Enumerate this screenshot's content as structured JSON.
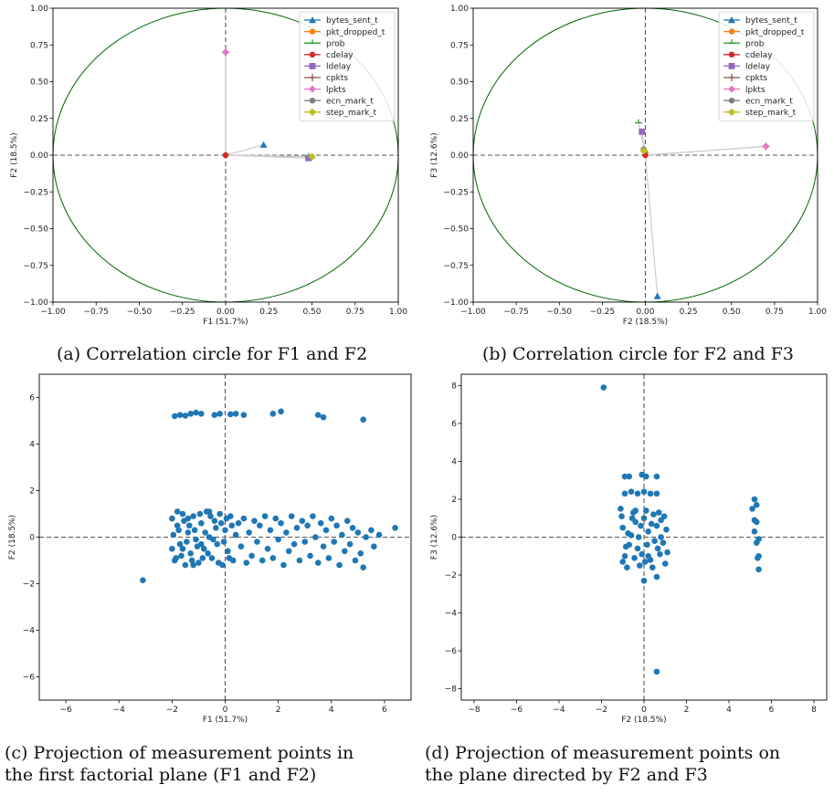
{
  "captions": {
    "a": "(a) Correlation circle for F1 and F2",
    "b": "(b) Correlation circle for F2 and F3",
    "c_line1": "(c) Projection of measurement points in",
    "c_line2": "the first factorial plane (F1 and F2)",
    "d_line1": "(d) Projection of measurement points on",
    "d_line2": "the plane directed by F2 and F3"
  },
  "colors": {
    "circle": "#006400",
    "scatter": "#1f77b4",
    "guide": "#555555",
    "arrow": "#cccccc"
  },
  "chart_data": [
    {
      "id": "a",
      "type": "scatter",
      "subtype": "correlation-circle",
      "xlabel": "F1 (51.7%)",
      "ylabel": "F2 (18.5%)",
      "xlim": [
        -1,
        1
      ],
      "ylim": [
        -1,
        1
      ],
      "xticks": [
        "−1.00",
        "−0.75",
        "−0.50",
        "−0.25",
        "0.00",
        "0.25",
        "0.50",
        "0.75",
        "1.00"
      ],
      "yticks": [
        "−1.00",
        "−0.75",
        "−0.50",
        "−0.25",
        "0.00",
        "0.25",
        "0.50",
        "0.75",
        "1.00"
      ],
      "legend_position": "top-right",
      "series": [
        {
          "name": "bytes_sent_t",
          "color": "#1f77b4",
          "marker": "triangle",
          "x": 0.22,
          "y": 0.07
        },
        {
          "name": "pkt_dropped_t",
          "color": "#ff7f0e",
          "marker": "circle",
          "x": 0.0,
          "y": 0.0
        },
        {
          "name": "prob",
          "color": "#2ca02c",
          "marker": "tri",
          "x": 0.48,
          "y": -0.01
        },
        {
          "name": "cdelay",
          "color": "#d62728",
          "marker": "circle",
          "x": 0.0,
          "y": 0.0
        },
        {
          "name": "ldelay",
          "color": "#9467bd",
          "marker": "square",
          "x": 0.48,
          "y": -0.02
        },
        {
          "name": "cpkts",
          "color": "#8c564b",
          "marker": "plus",
          "x": 0.0,
          "y": 0.7
        },
        {
          "name": "lpkts",
          "color": "#e377c2",
          "marker": "diamond",
          "x": 0.0,
          "y": 0.7
        },
        {
          "name": "ecn_mark_t",
          "color": "#7f7f7f",
          "marker": "circle",
          "x": 0.5,
          "y": -0.01
        },
        {
          "name": "step_mark_t",
          "color": "#bcbd22",
          "marker": "plus-circle",
          "x": 0.5,
          "y": -0.01
        }
      ]
    },
    {
      "id": "b",
      "type": "scatter",
      "subtype": "correlation-circle",
      "xlabel": "F2 (18.5%)",
      "ylabel": "F3 (12.6%)",
      "xlim": [
        -1,
        1
      ],
      "ylim": [
        -1,
        1
      ],
      "xticks": [
        "−1.00",
        "−0.75",
        "−0.50",
        "−0.25",
        "0.00",
        "0.25",
        "0.50",
        "0.75",
        "1.00"
      ],
      "yticks": [
        "−1.00",
        "−0.75",
        "−0.50",
        "−0.25",
        "0.00",
        "0.25",
        "0.50",
        "0.75",
        "1.00"
      ],
      "legend_position": "top-right",
      "series": [
        {
          "name": "bytes_sent_t",
          "color": "#1f77b4",
          "marker": "triangle",
          "x": 0.07,
          "y": -0.96
        },
        {
          "name": "pkt_dropped_t",
          "color": "#ff7f0e",
          "marker": "circle",
          "x": 0.0,
          "y": 0.02
        },
        {
          "name": "prob",
          "color": "#2ca02c",
          "marker": "tri",
          "x": -0.04,
          "y": 0.22
        },
        {
          "name": "cdelay",
          "color": "#d62728",
          "marker": "circle",
          "x": 0.0,
          "y": 0.0
        },
        {
          "name": "ldelay",
          "color": "#9467bd",
          "marker": "square",
          "x": -0.02,
          "y": 0.16
        },
        {
          "name": "cpkts",
          "color": "#8c564b",
          "marker": "plus",
          "x": 0.7,
          "y": 0.06
        },
        {
          "name": "lpkts",
          "color": "#e377c2",
          "marker": "diamond",
          "x": 0.7,
          "y": 0.06
        },
        {
          "name": "ecn_mark_t",
          "color": "#7f7f7f",
          "marker": "circle",
          "x": -0.01,
          "y": 0.04
        },
        {
          "name": "step_mark_t",
          "color": "#bcbd22",
          "marker": "plus-circle",
          "x": -0.01,
          "y": 0.03
        }
      ]
    },
    {
      "id": "c",
      "type": "scatter",
      "xlabel": "F1 (51.7%)",
      "ylabel": "F2 (18.5%)",
      "xlim": [
        -7,
        7
      ],
      "ylim": [
        -7,
        7
      ],
      "xticks": [
        "−6",
        "−4",
        "−2",
        "0",
        "2",
        "4",
        "6"
      ],
      "yticks": [
        "−6",
        "−4",
        "−2",
        "0",
        "2",
        "4",
        "6"
      ],
      "points": [
        [
          -3.1,
          -1.85
        ],
        [
          6.4,
          0.4
        ],
        [
          5.2,
          5.05
        ],
        [
          -1.9,
          5.2
        ],
        [
          -1.7,
          5.25
        ],
        [
          -1.5,
          5.22
        ],
        [
          -1.3,
          5.3
        ],
        [
          -1.1,
          5.35
        ],
        [
          -0.9,
          5.3
        ],
        [
          -0.4,
          5.25
        ],
        [
          -0.2,
          5.3
        ],
        [
          0.2,
          5.28
        ],
        [
          0.4,
          5.3
        ],
        [
          0.7,
          5.25
        ],
        [
          1.8,
          5.3
        ],
        [
          2.1,
          5.4
        ],
        [
          3.5,
          5.25
        ],
        [
          3.7,
          5.15
        ],
        [
          -2.0,
          -0.5
        ],
        [
          -2.0,
          0.8
        ],
        [
          -1.95,
          0.1
        ],
        [
          -1.9,
          -1.0
        ],
        [
          -1.8,
          0.5
        ],
        [
          -1.7,
          -0.3
        ],
        [
          -1.6,
          1.0
        ],
        [
          -1.5,
          -1.2
        ],
        [
          -1.4,
          0.2
        ],
        [
          -1.3,
          -0.7
        ],
        [
          -1.2,
          0.9
        ],
        [
          -1.1,
          -0.1
        ],
        [
          -1.0,
          -1.1
        ],
        [
          -0.9,
          0.6
        ],
        [
          -0.8,
          -0.5
        ],
        [
          -0.7,
          1.1
        ],
        [
          -0.6,
          0.0
        ],
        [
          -0.5,
          -0.9
        ],
        [
          -0.4,
          0.7
        ],
        [
          -0.3,
          -0.3
        ],
        [
          -0.2,
          1.0
        ],
        [
          -0.1,
          -1.2
        ],
        [
          0.0,
          0.3
        ],
        [
          0.1,
          -0.6
        ],
        [
          0.2,
          0.9
        ],
        [
          0.3,
          -1.0
        ],
        [
          0.4,
          0.1
        ],
        [
          0.5,
          0.6
        ],
        [
          0.6,
          -0.4
        ],
        [
          0.7,
          0.8
        ],
        [
          0.8,
          -1.1
        ],
        [
          0.9,
          0.2
        ],
        [
          1.0,
          -0.8
        ],
        [
          1.1,
          0.7
        ],
        [
          1.2,
          -0.2
        ],
        [
          1.3,
          0.5
        ],
        [
          1.4,
          -1.0
        ],
        [
          1.5,
          0.9
        ],
        [
          1.6,
          -0.5
        ],
        [
          1.7,
          0.3
        ],
        [
          1.8,
          -0.9
        ],
        [
          1.9,
          0.8
        ],
        [
          2.0,
          -0.1
        ],
        [
          2.1,
          0.6
        ],
        [
          2.2,
          -1.2
        ],
        [
          2.3,
          0.2
        ],
        [
          2.4,
          -0.6
        ],
        [
          2.5,
          0.9
        ],
        [
          2.6,
          -0.3
        ],
        [
          2.7,
          0.4
        ],
        [
          2.8,
          -1.0
        ],
        [
          2.9,
          0.7
        ],
        [
          3.0,
          -0.2
        ],
        [
          3.1,
          0.5
        ],
        [
          3.2,
          -0.8
        ],
        [
          3.3,
          0.9
        ],
        [
          3.4,
          0.0
        ],
        [
          3.5,
          -1.1
        ],
        [
          3.6,
          0.6
        ],
        [
          3.7,
          -0.4
        ],
        [
          3.8,
          0.3
        ],
        [
          3.9,
          -0.9
        ],
        [
          4.0,
          0.8
        ],
        [
          4.1,
          -0.2
        ],
        [
          4.2,
          0.5
        ],
        [
          4.3,
          -1.2
        ],
        [
          4.4,
          0.1
        ],
        [
          4.5,
          -0.6
        ],
        [
          4.6,
          0.7
        ],
        [
          4.7,
          -0.3
        ],
        [
          4.8,
          0.4
        ],
        [
          4.9,
          -1.0
        ],
        [
          5.0,
          0.2
        ],
        [
          5.1,
          -0.7
        ],
        [
          5.2,
          -1.3
        ],
        [
          5.3,
          0.0
        ],
        [
          5.5,
          0.3
        ],
        [
          5.6,
          -0.4
        ],
        [
          5.8,
          0.1
        ],
        [
          -1.85,
          -0.9
        ],
        [
          -1.75,
          0.3
        ],
        [
          -1.65,
          -0.8
        ],
        [
          -1.55,
          0.7
        ],
        [
          -1.45,
          -0.2
        ],
        [
          -1.35,
          0.5
        ],
        [
          -1.25,
          -1.0
        ],
        [
          -1.15,
          0.3
        ],
        [
          -1.05,
          -0.4
        ],
        [
          -0.95,
          1.0
        ],
        [
          -0.85,
          -0.9
        ],
        [
          -0.75,
          0.2
        ],
        [
          -0.65,
          -0.7
        ],
        [
          -0.55,
          0.9
        ],
        [
          -0.45,
          -0.1
        ],
        [
          -0.35,
          0.4
        ],
        [
          -0.25,
          -1.1
        ],
        [
          -0.15,
          0.6
        ],
        [
          -0.05,
          -0.2
        ],
        [
          0.05,
          0.8
        ],
        [
          0.15,
          -0.9
        ],
        [
          0.25,
          0.5
        ],
        [
          -1.8,
          1.1
        ],
        [
          -1.2,
          -1.2
        ],
        [
          -0.6,
          1.1
        ],
        [
          -1.6,
          -0.5
        ],
        [
          -0.9,
          -0.3
        ],
        [
          -1.4,
          0.8
        ]
      ]
    },
    {
      "id": "d",
      "type": "scatter",
      "xlabel": "F2 (18.5%)",
      "ylabel": "F3 (12.6%)",
      "xlim": [
        -8.6,
        8.6
      ],
      "ylim": [
        -8.6,
        8.6
      ],
      "xticks": [
        "−8",
        "−6",
        "−4",
        "−2",
        "0",
        "2",
        "4",
        "6",
        "8"
      ],
      "yticks": [
        "−8",
        "−6",
        "−4",
        "−2",
        "0",
        "2",
        "4",
        "6",
        "8"
      ],
      "points": [
        [
          -1.9,
          7.9
        ],
        [
          0.6,
          -7.1
        ],
        [
          0.0,
          -2.3
        ],
        [
          0.6,
          -2.1
        ],
        [
          -0.9,
          3.2
        ],
        [
          -0.7,
          3.2
        ],
        [
          -0.1,
          3.3
        ],
        [
          0.1,
          3.2
        ],
        [
          0.6,
          3.2
        ],
        [
          -0.9,
          2.3
        ],
        [
          -0.6,
          2.4
        ],
        [
          -0.3,
          2.3
        ],
        [
          0.0,
          2.4
        ],
        [
          0.3,
          2.3
        ],
        [
          0.6,
          2.3
        ],
        [
          -1.1,
          1.5
        ],
        [
          -0.8,
          -1.6
        ],
        [
          -0.5,
          1.3
        ],
        [
          -0.2,
          -1.5
        ],
        [
          0.1,
          1.4
        ],
        [
          0.4,
          -1.6
        ],
        [
          0.7,
          1.3
        ],
        [
          1.0,
          -1.4
        ],
        [
          -1.0,
          0.5
        ],
        [
          -0.7,
          -0.4
        ],
        [
          -0.4,
          0.8
        ],
        [
          -0.1,
          -0.9
        ],
        [
          0.2,
          0.3
        ],
        [
          0.5,
          -0.2
        ],
        [
          0.8,
          0.9
        ],
        [
          1.1,
          -0.8
        ],
        [
          -0.9,
          -1.0
        ],
        [
          -0.6,
          0.1
        ],
        [
          -0.3,
          -0.6
        ],
        [
          0.0,
          1.0
        ],
        [
          0.3,
          -1.2
        ],
        [
          0.6,
          0.6
        ],
        [
          0.9,
          -0.3
        ],
        [
          -1.05,
          1.1
        ],
        [
          -0.75,
          0.2
        ],
        [
          -0.45,
          -1.1
        ],
        [
          -0.15,
          0.6
        ],
        [
          0.15,
          -0.4
        ],
        [
          0.45,
          1.2
        ],
        [
          0.75,
          -0.9
        ],
        [
          1.05,
          0.4
        ],
        [
          -0.85,
          -0.5
        ],
        [
          -0.55,
          1.0
        ],
        [
          -0.25,
          0.0
        ],
        [
          0.05,
          -1.3
        ],
        [
          0.35,
          0.7
        ],
        [
          0.65,
          -0.6
        ],
        [
          0.95,
          1.1
        ],
        [
          -1.0,
          -1.3
        ],
        [
          -0.4,
          1.4
        ],
        [
          0.2,
          -1.0
        ],
        [
          0.8,
          0.0
        ],
        [
          5.2,
          2.0
        ],
        [
          5.3,
          1.7
        ],
        [
          5.1,
          1.5
        ],
        [
          5.2,
          0.9
        ],
        [
          5.3,
          0.8
        ],
        [
          5.2,
          0.3
        ],
        [
          5.4,
          -0.1
        ],
        [
          5.3,
          -0.3
        ],
        [
          5.4,
          -1.0
        ],
        [
          5.35,
          -1.1
        ],
        [
          5.4,
          -1.7
        ]
      ]
    }
  ]
}
